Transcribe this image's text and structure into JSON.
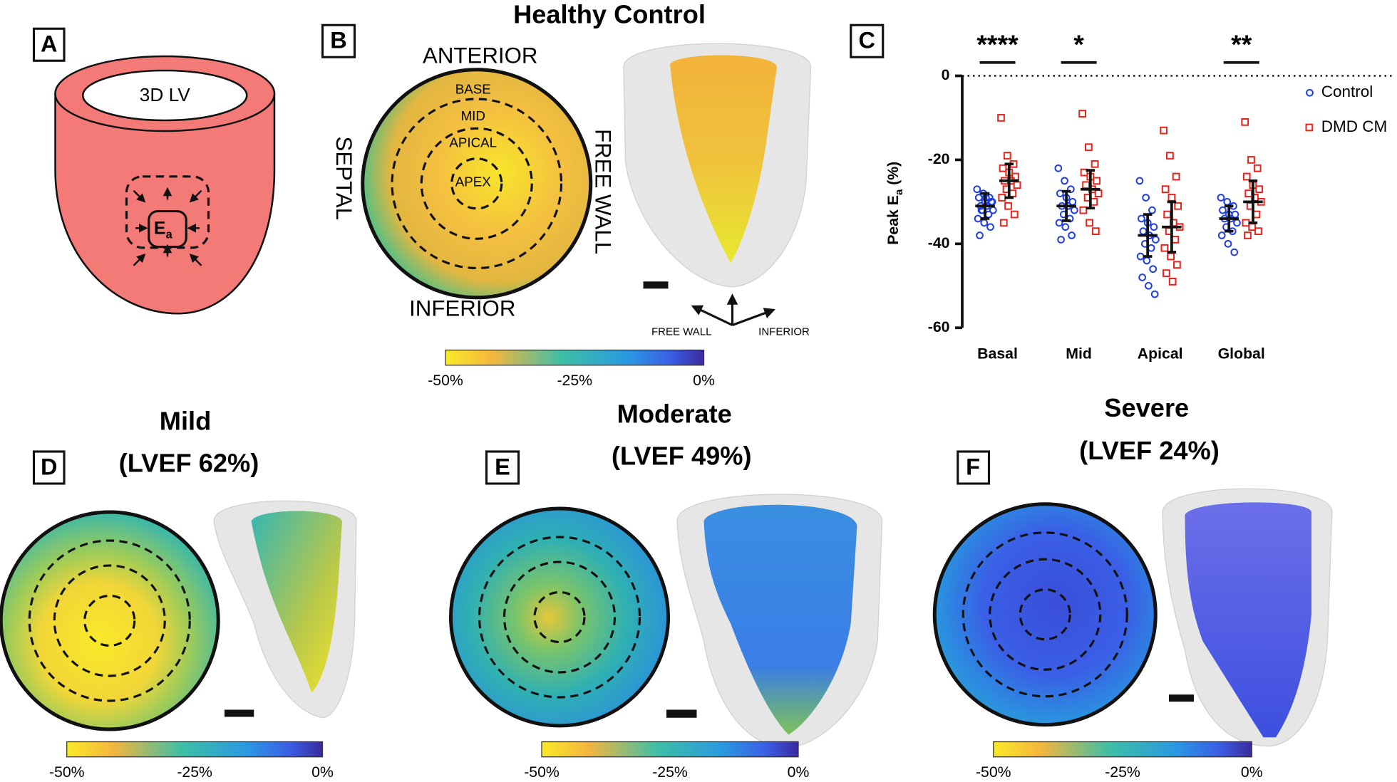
{
  "panel_a": {
    "label": "A",
    "chamber": "3D LV",
    "strain_symbol": [
      "E",
      "a"
    ]
  },
  "panel_b": {
    "label": "B",
    "title": "Healthy Control",
    "anterior": "ANTERIOR",
    "septal": "SEPTAL",
    "free_wall": "FREE WALL",
    "inferior": "INFERIOR",
    "rings": [
      "BASE",
      "MID",
      "APICAL",
      "APEX"
    ],
    "view_axes": [
      "FREE WALL",
      "INFERIOR"
    ],
    "colorbar": [
      "-50%",
      "-25%",
      "0%"
    ]
  },
  "panel_d": {
    "label": "D",
    "title": [
      "Mild",
      "(LVEF 62%)"
    ],
    "colorbar": [
      "-50%",
      "-25%",
      "0%"
    ]
  },
  "panel_e": {
    "label": "E",
    "title": [
      "Moderate",
      "(LVEF 49%)"
    ],
    "colorbar": [
      "-50%",
      "-25%",
      "0%"
    ]
  },
  "panel_f": {
    "label": "F",
    "title": [
      "Severe",
      "(LVEF 24%)"
    ],
    "colorbar": [
      "-50%",
      "-25%",
      "0%"
    ]
  },
  "chart_data": {
    "type": "scatter",
    "panel_label": "C",
    "ylabel": [
      "Peak E",
      "a",
      " (%)"
    ],
    "categories": [
      "Basal",
      "Mid",
      "Apical",
      "Global"
    ],
    "ylim": [
      -60,
      0
    ],
    "yticks": [
      0,
      -20,
      -40,
      -60
    ],
    "zero_line": "dotted",
    "legend": "upper right",
    "series": [
      {
        "name": "Control",
        "color": "#1f3fe0",
        "marker": "circle",
        "points": [
          [
            -27,
            -28,
            -29,
            -29,
            -30,
            -30,
            -31,
            -31,
            -32,
            -32,
            -33,
            -34,
            -35,
            -36,
            -38,
            -29,
            -30,
            -32
          ],
          [
            -22,
            -25,
            -27,
            -28,
            -29,
            -30,
            -31,
            -31,
            -32,
            -33,
            -34,
            -35,
            -36,
            -38,
            -39
          ],
          [
            -25,
            -29,
            -32,
            -34,
            -35,
            -36,
            -37,
            -38,
            -39,
            -40,
            -41,
            -43,
            -44,
            -46,
            -48,
            -50,
            -52
          ],
          [
            -29,
            -30,
            -31,
            -32,
            -33,
            -33,
            -34,
            -34,
            -35,
            -36,
            -37,
            -38,
            -40,
            -42
          ]
        ],
        "means": [
          -31,
          -31,
          -38,
          -34
        ],
        "sd": [
          3,
          3.5,
          5,
          3
        ]
      },
      {
        "name": "DMD CM",
        "color": "#e8231c",
        "marker": "square",
        "points": [
          [
            -10,
            -19,
            -21,
            -22,
            -23,
            -24,
            -25,
            -25,
            -26,
            -27,
            -28,
            -29,
            -31,
            -33,
            -35
          ],
          [
            -9,
            -17,
            -21,
            -23,
            -24,
            -25,
            -26,
            -27,
            -28,
            -29,
            -30,
            -32,
            -35,
            -37
          ],
          [
            -13,
            -19,
            -24,
            -27,
            -29,
            -31,
            -33,
            -35,
            -36,
            -37,
            -39,
            -41,
            -43,
            -45,
            -47,
            -49
          ],
          [
            -11,
            -20,
            -22,
            -24,
            -26,
            -27,
            -28,
            -29,
            -30,
            -31,
            -33,
            -35,
            -36,
            -37,
            -38
          ]
        ],
        "means": [
          -25,
          -27,
          -36,
          -30
        ],
        "sd": [
          4,
          4.5,
          6,
          5
        ]
      }
    ],
    "annotations": [
      {
        "category": 0,
        "text": "****"
      },
      {
        "category": 1,
        "text": "*"
      },
      {
        "category": 3,
        "text": "**"
      }
    ]
  }
}
